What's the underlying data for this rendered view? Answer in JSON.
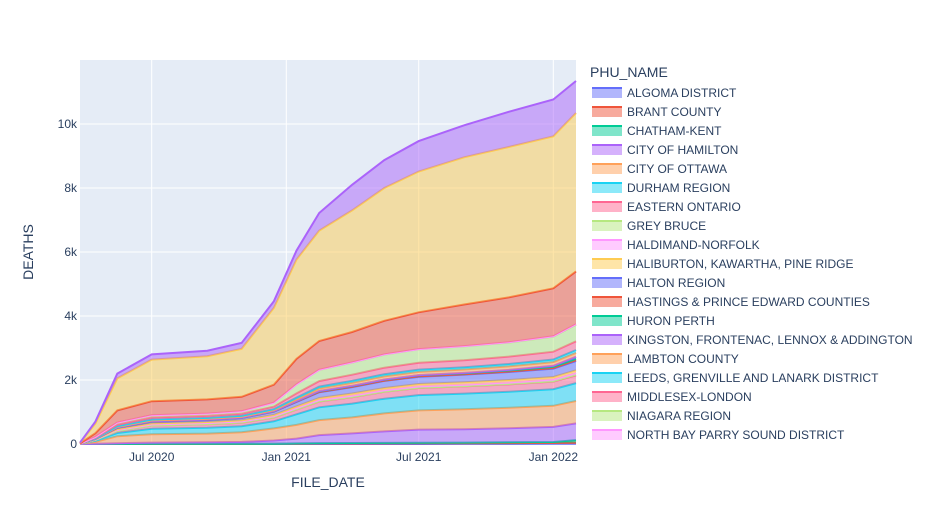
{
  "chart_data": {
    "type": "area",
    "xlabel": "FILE_DATE",
    "ylabel": "DEATHS",
    "x_ticks": [
      "Jul 2020",
      "Jan 2021",
      "Jul 2021",
      "Jan 2022"
    ],
    "y_ticks": [
      "0",
      "2k",
      "4k",
      "6k",
      "8k",
      "10k"
    ],
    "ylim": [
      0,
      12000
    ],
    "xlim": [
      "2020-03-25",
      "2022-02-01"
    ],
    "legend_title": "PHU_NAME",
    "legend_position": "right",
    "grid": true,
    "colors": {
      "plot_bg": "#e5ecf6",
      "grid": "#ffffff",
      "text": "#2a3f5f"
    },
    "x": [
      "2020-03-25",
      "2020-04-15",
      "2020-05-15",
      "2020-07-01",
      "2020-09-15",
      "2020-11-01",
      "2020-12-15",
      "2021-01-15",
      "2021-02-15",
      "2021-04-01",
      "2021-05-15",
      "2021-07-01",
      "2021-09-01",
      "2021-11-01",
      "2022-01-01",
      "2022-02-01"
    ],
    "series": [
      {
        "name": "ALGOMA DISTRICT",
        "color": "#636efa",
        "values": [
          0,
          0,
          0,
          0,
          0,
          0,
          0,
          0,
          0,
          0,
          1,
          1,
          2,
          3,
          6,
          8
        ]
      },
      {
        "name": "BRANT COUNTY",
        "color": "#EF553B",
        "values": [
          0,
          1,
          2,
          3,
          3,
          4,
          5,
          10,
          15,
          17,
          18,
          20,
          22,
          25,
          28,
          35
        ]
      },
      {
        "name": "CHATHAM-KENT",
        "color": "#00cc96",
        "values": [
          0,
          1,
          2,
          2,
          3,
          3,
          4,
          8,
          12,
          14,
          16,
          18,
          20,
          25,
          30,
          80
        ]
      },
      {
        "name": "CITY OF HAMILTON",
        "color": "#ab63fa",
        "values": [
          0,
          5,
          20,
          40,
          50,
          60,
          100,
          150,
          250,
          300,
          360,
          410,
          420,
          440,
          470,
          520
        ]
      },
      {
        "name": "CITY OF OTTAWA",
        "color": "#FFA15A",
        "values": [
          5,
          60,
          220,
          260,
          270,
          300,
          380,
          430,
          470,
          500,
          560,
          600,
          620,
          640,
          660,
          700
        ]
      },
      {
        "name": "DURHAM REGION",
        "color": "#19d3f3",
        "values": [
          2,
          40,
          100,
          170,
          180,
          190,
          220,
          330,
          400,
          430,
          460,
          480,
          490,
          500,
          520,
          560
        ]
      },
      {
        "name": "EASTERN ONTARIO",
        "color": "#FF6692",
        "values": [
          0,
          20,
          60,
          100,
          110,
          110,
          120,
          150,
          180,
          200,
          215,
          220,
          225,
          230,
          235,
          240
        ]
      },
      {
        "name": "GREY BRUCE",
        "color": "#B6E880",
        "values": [
          0,
          2,
          3,
          4,
          5,
          5,
          5,
          6,
          7,
          7,
          7,
          8,
          9,
          12,
          15,
          20
        ]
      },
      {
        "name": "HALDIMAND-NORFOLK",
        "color": "#FF97FF",
        "values": [
          0,
          10,
          30,
          32,
          34,
          35,
          38,
          42,
          44,
          45,
          46,
          47,
          48,
          50,
          55,
          60
        ]
      },
      {
        "name": "HALIBURTON, KAWARTHA, PINE RIDGE",
        "color": "#FECB52",
        "values": [
          0,
          10,
          30,
          32,
          33,
          34,
          36,
          50,
          60,
          65,
          68,
          70,
          72,
          74,
          76,
          80
        ]
      },
      {
        "name": "HALTON REGION",
        "color": "#636efa",
        "values": [
          1,
          10,
          40,
          55,
          58,
          70,
          100,
          140,
          180,
          200,
          220,
          230,
          240,
          250,
          260,
          290
        ]
      },
      {
        "name": "HASTINGS & PRINCE EDWARD COUNTIES",
        "color": "#EF553B",
        "values": [
          0,
          1,
          5,
          6,
          7,
          7,
          8,
          10,
          11,
          11,
          11,
          12,
          13,
          16,
          20,
          25
        ]
      },
      {
        "name": "HURON PERTH",
        "color": "#00cc96",
        "values": [
          0,
          2,
          5,
          5,
          5,
          5,
          6,
          10,
          20,
          25,
          28,
          30,
          32,
          35,
          40,
          50
        ]
      },
      {
        "name": "KINGSTON, FRONTENAC, LENNOX & ADDINGTON",
        "color": "#ab63fa",
        "values": [
          0,
          1,
          2,
          3,
          3,
          3,
          3,
          5,
          6,
          6,
          7,
          8,
          10,
          15,
          30,
          60
        ]
      },
      {
        "name": "LAMBTON COUNTY",
        "color": "#FFA15A",
        "values": [
          0,
          10,
          20,
          25,
          25,
          26,
          30,
          60,
          80,
          90,
          95,
          100,
          105,
          110,
          115,
          120
        ]
      },
      {
        "name": "LEEDS, GRENVILLE AND LANARK DISTRICT",
        "color": "#19d3f3",
        "values": [
          0,
          5,
          20,
          30,
          30,
          31,
          35,
          50,
          60,
          65,
          68,
          70,
          72,
          75,
          80,
          90
        ]
      },
      {
        "name": "MIDDLESEX-LONDON",
        "color": "#FF6692",
        "values": [
          2,
          20,
          50,
          60,
          62,
          64,
          80,
          130,
          170,
          190,
          205,
          215,
          220,
          230,
          245,
          270
        ]
      },
      {
        "name": "NIAGARA REGION",
        "color": "#B6E880",
        "values": [
          2,
          20,
          60,
          70,
          70,
          75,
          120,
          280,
          350,
          380,
          410,
          420,
          430,
          440,
          470,
          520
        ]
      },
      {
        "name": "NORTH BAY PARRY SOUND DISTRICT",
        "color": "#FF97FF",
        "values": [
          0,
          1,
          1,
          2,
          2,
          2,
          2,
          3,
          4,
          5,
          6,
          7,
          8,
          10,
          12,
          15
        ]
      },
      {
        "name": "",
        "color": "#EF553B",
        "values": [
          3,
          120,
          380,
          440,
          445,
          450,
          560,
          800,
          900,
          950,
          1050,
          1150,
          1300,
          1400,
          1500,
          1650
        ]
      },
      {
        "name": "",
        "color": "#FECB52",
        "values": [
          20,
          300,
          1000,
          1300,
          1350,
          1500,
          2400,
          3100,
          3450,
          3800,
          4150,
          4400,
          4600,
          4700,
          4750,
          4950
        ]
      },
      {
        "name": "",
        "color": "#ab63fa",
        "values": [
          5,
          60,
          150,
          160,
          170,
          185,
          210,
          280,
          550,
          800,
          870,
          950,
          1000,
          1100,
          1150,
          1000
        ]
      }
    ]
  }
}
